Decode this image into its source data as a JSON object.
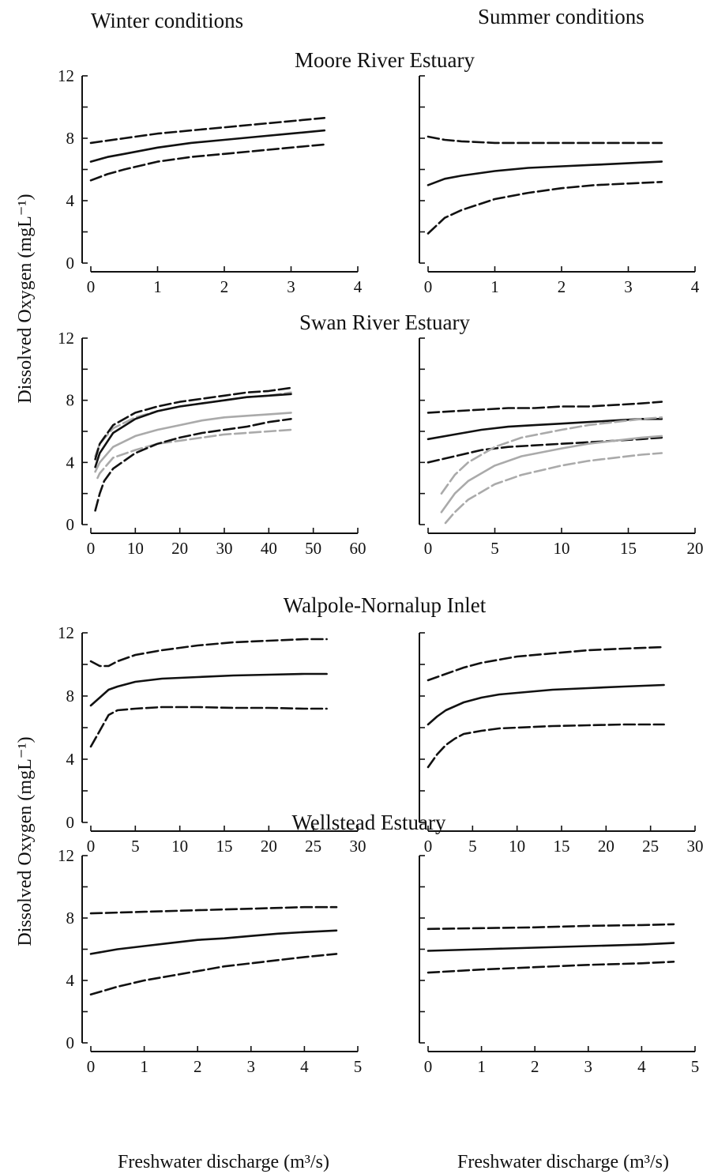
{
  "figure": {
    "column_headers": {
      "left": "Winter conditions",
      "right": "Summer conditions"
    },
    "y_axis_label": "Dissolved Oxygen (mgL⁻¹)",
    "x_axis_label": "Freshwater discharge (m³/s)",
    "colors": {
      "primary": "#111111",
      "secondary": "#aaaaaa"
    }
  },
  "chart_data": [
    {
      "type": "line",
      "title": "Moore River Estuary",
      "condition": "Winter conditions",
      "xlim": [
        0,
        4
      ],
      "ylim": [
        0,
        12
      ],
      "xticks": [
        0,
        1,
        2,
        3,
        4
      ],
      "yticks": [
        0,
        4,
        8,
        12
      ],
      "ylabels_shown": true,
      "grid": false,
      "series": [
        {
          "color": "#111111",
          "dash": true,
          "x": [
            0,
            0.5,
            1,
            1.5,
            2,
            2.5,
            3,
            3.5
          ],
          "y": [
            7.7,
            8.0,
            8.3,
            8.5,
            8.7,
            8.9,
            9.1,
            9.3
          ]
        },
        {
          "color": "#111111",
          "dash": false,
          "x": [
            0,
            0.25,
            0.5,
            1,
            1.5,
            2,
            2.5,
            3,
            3.5
          ],
          "y": [
            6.5,
            6.8,
            7.0,
            7.4,
            7.7,
            7.9,
            8.1,
            8.3,
            8.5
          ]
        },
        {
          "color": "#111111",
          "dash": true,
          "x": [
            0,
            0.25,
            0.5,
            1,
            1.5,
            2,
            2.5,
            3,
            3.5
          ],
          "y": [
            5.3,
            5.7,
            6.0,
            6.5,
            6.8,
            7.0,
            7.2,
            7.4,
            7.6
          ]
        }
      ]
    },
    {
      "type": "line",
      "title": "",
      "condition": "Summer conditions",
      "xlim": [
        0,
        4
      ],
      "ylim": [
        0,
        12
      ],
      "xticks": [
        0,
        1,
        2,
        3,
        4
      ],
      "yticks": [
        0,
        4,
        8,
        12
      ],
      "ylabels_shown": false,
      "grid": false,
      "series": [
        {
          "color": "#111111",
          "dash": true,
          "x": [
            0,
            0.25,
            0.5,
            1,
            1.5,
            2,
            2.5,
            3,
            3.5
          ],
          "y": [
            8.1,
            7.9,
            7.8,
            7.7,
            7.7,
            7.7,
            7.7,
            7.7,
            7.7
          ]
        },
        {
          "color": "#111111",
          "dash": false,
          "x": [
            0,
            0.25,
            0.5,
            1,
            1.5,
            2,
            2.5,
            3,
            3.5
          ],
          "y": [
            5.0,
            5.4,
            5.6,
            5.9,
            6.1,
            6.2,
            6.3,
            6.4,
            6.5
          ]
        },
        {
          "color": "#111111",
          "dash": true,
          "x": [
            0,
            0.25,
            0.5,
            1,
            1.5,
            2,
            2.5,
            3,
            3.5
          ],
          "y": [
            1.9,
            2.9,
            3.4,
            4.1,
            4.5,
            4.8,
            5.0,
            5.1,
            5.2
          ]
        }
      ]
    },
    {
      "type": "line",
      "title": "Swan River Estuary",
      "condition": "Winter conditions",
      "xlim": [
        0,
        60
      ],
      "ylim": [
        0,
        12
      ],
      "xticks": [
        0,
        10,
        20,
        30,
        40,
        50,
        60
      ],
      "yticks": [
        0,
        4,
        8,
        12
      ],
      "ylabels_shown": true,
      "grid": false,
      "series": [
        {
          "color": "#aaaaaa",
          "dash": true,
          "x": [
            1,
            2,
            5,
            10,
            15,
            20,
            25,
            30,
            35,
            40,
            45
          ],
          "y": [
            4.4,
            5.2,
            6.2,
            6.9,
            7.3,
            7.6,
            7.8,
            8.0,
            8.2,
            8.3,
            8.5
          ]
        },
        {
          "color": "#aaaaaa",
          "dash": false,
          "x": [
            1,
            2,
            5,
            10,
            15,
            20,
            25,
            30,
            35,
            40,
            45
          ],
          "y": [
            3.4,
            4.0,
            5.0,
            5.7,
            6.1,
            6.4,
            6.7,
            6.9,
            7.0,
            7.1,
            7.2
          ]
        },
        {
          "color": "#aaaaaa",
          "dash": true,
          "x": [
            1.5,
            2,
            5,
            10,
            15,
            20,
            25,
            30,
            35,
            40,
            45
          ],
          "y": [
            3.0,
            3.3,
            4.3,
            4.8,
            5.2,
            5.4,
            5.6,
            5.8,
            5.9,
            6.0,
            6.1
          ]
        },
        {
          "color": "#111111",
          "dash": true,
          "x": [
            1,
            2,
            5,
            10,
            15,
            20,
            25,
            30,
            35,
            40,
            45
          ],
          "y": [
            4.2,
            5.2,
            6.4,
            7.2,
            7.6,
            7.9,
            8.1,
            8.3,
            8.5,
            8.6,
            8.8
          ]
        },
        {
          "color": "#111111",
          "dash": false,
          "x": [
            1,
            2,
            5,
            10,
            15,
            20,
            25,
            30,
            35,
            40,
            45
          ],
          "y": [
            3.7,
            4.6,
            5.9,
            6.8,
            7.3,
            7.6,
            7.8,
            8.0,
            8.2,
            8.3,
            8.4
          ]
        },
        {
          "color": "#111111",
          "dash": true,
          "x": [
            1,
            2,
            3,
            5,
            10,
            15,
            20,
            25,
            30,
            35,
            40,
            45
          ],
          "y": [
            0.9,
            2.0,
            2.8,
            3.6,
            4.6,
            5.2,
            5.6,
            5.9,
            6.1,
            6.3,
            6.6,
            6.8
          ]
        }
      ]
    },
    {
      "type": "line",
      "title": "",
      "condition": "Summer conditions",
      "xlim": [
        0,
        20
      ],
      "ylim": [
        0,
        12
      ],
      "xticks": [
        0,
        5,
        10,
        15,
        20
      ],
      "yticks": [
        0,
        4,
        8,
        12
      ],
      "ylabels_shown": false,
      "grid": false,
      "series": [
        {
          "color": "#111111",
          "dash": true,
          "x": [
            0,
            2,
            4,
            6,
            8,
            10,
            12,
            14,
            16,
            17.5
          ],
          "y": [
            7.2,
            7.3,
            7.4,
            7.5,
            7.5,
            7.6,
            7.6,
            7.7,
            7.8,
            7.9
          ]
        },
        {
          "color": "#111111",
          "dash": false,
          "x": [
            0,
            2,
            4,
            6,
            8,
            10,
            12,
            14,
            16,
            17.5
          ],
          "y": [
            5.5,
            5.8,
            6.1,
            6.3,
            6.4,
            6.5,
            6.6,
            6.7,
            6.8,
            6.8
          ]
        },
        {
          "color": "#111111",
          "dash": true,
          "x": [
            0,
            2,
            4,
            6,
            8,
            10,
            12,
            14,
            16,
            17.5
          ],
          "y": [
            4.0,
            4.4,
            4.8,
            5.0,
            5.1,
            5.2,
            5.3,
            5.4,
            5.5,
            5.6
          ]
        },
        {
          "color": "#aaaaaa",
          "dash": true,
          "x": [
            1,
            2,
            3,
            5,
            7,
            10,
            12,
            14,
            16,
            17.5
          ],
          "y": [
            2.0,
            3.2,
            4.0,
            5.0,
            5.6,
            6.1,
            6.4,
            6.6,
            6.8,
            6.9
          ]
        },
        {
          "color": "#aaaaaa",
          "dash": false,
          "x": [
            1,
            2,
            3,
            5,
            7,
            10,
            12,
            14,
            16,
            17.5
          ],
          "y": [
            0.8,
            2.0,
            2.8,
            3.8,
            4.4,
            4.9,
            5.2,
            5.4,
            5.6,
            5.7
          ]
        },
        {
          "color": "#aaaaaa",
          "dash": true,
          "x": [
            1.3,
            2,
            3,
            5,
            7,
            10,
            12,
            14,
            16,
            17.5
          ],
          "y": [
            0.1,
            0.8,
            1.6,
            2.6,
            3.2,
            3.8,
            4.1,
            4.3,
            4.5,
            4.6
          ]
        }
      ]
    },
    {
      "type": "line",
      "title": "Walpole-Nornalup Inlet",
      "condition": "Winter conditions",
      "xlim": [
        0,
        30
      ],
      "ylim": [
        0,
        12
      ],
      "xticks": [
        0,
        5,
        10,
        15,
        20,
        25,
        30
      ],
      "yticks": [
        0,
        4,
        8,
        12
      ],
      "ylabels_shown": true,
      "grid": false,
      "series": [
        {
          "color": "#111111",
          "dash": true,
          "x": [
            0,
            1,
            2,
            3,
            5,
            8,
            12,
            16,
            20,
            24,
            26.5
          ],
          "y": [
            10.2,
            9.9,
            9.9,
            10.2,
            10.6,
            10.9,
            11.2,
            11.4,
            11.5,
            11.6,
            11.6
          ]
        },
        {
          "color": "#111111",
          "dash": false,
          "x": [
            0,
            1,
            2,
            3,
            5,
            8,
            12,
            16,
            20,
            24,
            26.5
          ],
          "y": [
            7.4,
            7.9,
            8.4,
            8.6,
            8.9,
            9.1,
            9.2,
            9.3,
            9.35,
            9.4,
            9.4
          ]
        },
        {
          "color": "#111111",
          "dash": true,
          "x": [
            0,
            1,
            2,
            3,
            5,
            8,
            12,
            16,
            20,
            24,
            26.5
          ],
          "y": [
            4.8,
            5.8,
            6.8,
            7.1,
            7.2,
            7.3,
            7.3,
            7.25,
            7.25,
            7.2,
            7.2
          ]
        }
      ]
    },
    {
      "type": "line",
      "title": "",
      "condition": "Summer conditions",
      "xlim": [
        0,
        30
      ],
      "ylim": [
        0,
        12
      ],
      "xticks": [
        0,
        5,
        10,
        15,
        20,
        25,
        30
      ],
      "yticks": [
        0,
        4,
        8,
        12
      ],
      "ylabels_shown": false,
      "grid": false,
      "series": [
        {
          "color": "#111111",
          "dash": true,
          "x": [
            0,
            1,
            2,
            4,
            6,
            8,
            10,
            14,
            18,
            22,
            26.5
          ],
          "y": [
            9.0,
            9.2,
            9.4,
            9.8,
            10.1,
            10.3,
            10.5,
            10.7,
            10.9,
            11.0,
            11.1
          ]
        },
        {
          "color": "#111111",
          "dash": false,
          "x": [
            0,
            1,
            2,
            4,
            6,
            8,
            10,
            14,
            18,
            22,
            26.5
          ],
          "y": [
            6.2,
            6.7,
            7.1,
            7.6,
            7.9,
            8.1,
            8.2,
            8.4,
            8.5,
            8.6,
            8.7
          ]
        },
        {
          "color": "#111111",
          "dash": true,
          "x": [
            0,
            1,
            2,
            3,
            4,
            6,
            8,
            10,
            14,
            18,
            22,
            26.5
          ],
          "y": [
            3.5,
            4.3,
            4.9,
            5.3,
            5.6,
            5.8,
            5.95,
            6.0,
            6.1,
            6.15,
            6.2,
            6.2
          ]
        }
      ]
    },
    {
      "type": "line",
      "title": "Wellstead Estuary",
      "condition": "Winter conditions",
      "xlim": [
        0,
        5
      ],
      "ylim": [
        0,
        12
      ],
      "xticks": [
        0,
        1,
        2,
        3,
        4,
        5
      ],
      "yticks": [
        0,
        4,
        8,
        12
      ],
      "ylabels_shown": true,
      "grid": false,
      "series": [
        {
          "color": "#111111",
          "dash": true,
          "x": [
            0,
            1,
            2,
            3,
            4,
            4.6
          ],
          "y": [
            8.3,
            8.4,
            8.5,
            8.6,
            8.7,
            8.7
          ]
        },
        {
          "color": "#111111",
          "dash": false,
          "x": [
            0,
            0.5,
            1,
            1.5,
            2,
            2.5,
            3,
            3.5,
            4,
            4.6
          ],
          "y": [
            5.7,
            6.0,
            6.2,
            6.4,
            6.6,
            6.7,
            6.85,
            7.0,
            7.1,
            7.2
          ]
        },
        {
          "color": "#111111",
          "dash": true,
          "x": [
            0,
            0.5,
            1,
            1.5,
            2,
            2.5,
            3,
            3.5,
            4,
            4.6
          ],
          "y": [
            3.1,
            3.6,
            4.0,
            4.3,
            4.6,
            4.9,
            5.1,
            5.3,
            5.5,
            5.7
          ]
        }
      ]
    },
    {
      "type": "line",
      "title": "",
      "condition": "Summer conditions",
      "xlim": [
        0,
        5
      ],
      "ylim": [
        0,
        12
      ],
      "xticks": [
        0,
        1,
        2,
        3,
        4,
        5
      ],
      "yticks": [
        0,
        4,
        8,
        12
      ],
      "ylabels_shown": false,
      "grid": false,
      "series": [
        {
          "color": "#111111",
          "dash": true,
          "x": [
            0,
            1,
            2,
            3,
            4,
            4.6
          ],
          "y": [
            7.3,
            7.35,
            7.4,
            7.5,
            7.55,
            7.6
          ]
        },
        {
          "color": "#111111",
          "dash": false,
          "x": [
            0,
            1,
            2,
            3,
            4,
            4.6
          ],
          "y": [
            5.9,
            6.0,
            6.1,
            6.2,
            6.3,
            6.4
          ]
        },
        {
          "color": "#111111",
          "dash": true,
          "x": [
            0,
            1,
            2,
            3,
            4,
            4.6
          ],
          "y": [
            4.5,
            4.7,
            4.85,
            5.0,
            5.1,
            5.2
          ]
        }
      ]
    }
  ]
}
